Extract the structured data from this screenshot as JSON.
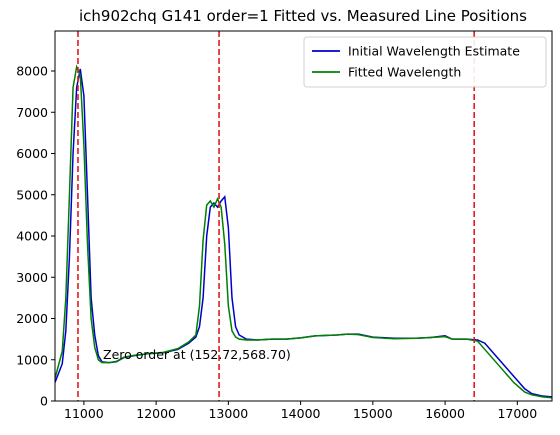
{
  "chart_data": {
    "type": "line",
    "title": "ich902chq G141 order=1 Fitted vs. Measured Line Positions",
    "annotation": "Zero order at (152.72,568.70)",
    "x": [
      10600,
      10700,
      10750,
      10800,
      10850,
      10900,
      10950,
      11000,
      11050,
      11100,
      11150,
      11200,
      11250,
      11350,
      11450,
      11550,
      11700,
      11900,
      12100,
      12300,
      12450,
      12550,
      12600,
      12650,
      12700,
      12750,
      12800,
      12850,
      12900,
      12950,
      13000,
      13050,
      13100,
      13150,
      13250,
      13400,
      13600,
      13800,
      14000,
      14200,
      14500,
      14650,
      14800,
      15000,
      15300,
      15600,
      15800,
      16000,
      16100,
      16300,
      16450,
      16550,
      16650,
      16800,
      16950,
      17100,
      17200,
      17350,
      17480
    ],
    "series": [
      {
        "name": "Initial Wavelength Estimate",
        "color": "#0000cc",
        "values": [
          450,
          900,
          1700,
          3500,
          6000,
          7600,
          8050,
          7400,
          5000,
          2500,
          1600,
          1100,
          950,
          930,
          950,
          1050,
          1100,
          1150,
          1170,
          1250,
          1400,
          1550,
          1800,
          2500,
          4000,
          4700,
          4800,
          4700,
          4850,
          4950,
          4200,
          2500,
          1800,
          1600,
          1500,
          1480,
          1500,
          1500,
          1530,
          1580,
          1600,
          1620,
          1620,
          1550,
          1520,
          1520,
          1540,
          1580,
          1500,
          1500,
          1480,
          1400,
          1200,
          900,
          600,
          300,
          180,
          120,
          100
        ]
      },
      {
        "name": "Fitted Wavelength",
        "color": "#008000",
        "values": [
          550,
          1200,
          2500,
          5000,
          7600,
          8100,
          7900,
          6200,
          3800,
          2000,
          1300,
          1000,
          930,
          930,
          960,
          1060,
          1110,
          1150,
          1180,
          1270,
          1430,
          1600,
          2300,
          3900,
          4750,
          4850,
          4700,
          4900,
          4700,
          3800,
          2300,
          1700,
          1550,
          1500,
          1480,
          1480,
          1500,
          1500,
          1530,
          1580,
          1600,
          1620,
          1610,
          1540,
          1510,
          1520,
          1540,
          1560,
          1500,
          1500,
          1450,
          1250,
          1050,
          750,
          450,
          220,
          150,
          100,
          80
        ]
      }
    ],
    "vlines": [
      10918,
      12871,
      16403
    ],
    "vline_color": "#e31a1c",
    "xlim": [
      10600,
      17480
    ],
    "ylim": [
      0,
      8970
    ],
    "xticks": [
      11000,
      12000,
      13000,
      14000,
      15000,
      16000,
      17000
    ],
    "yticks": [
      0,
      1000,
      2000,
      3000,
      4000,
      5000,
      6000,
      7000,
      8000
    ],
    "legend": "upper right"
  }
}
